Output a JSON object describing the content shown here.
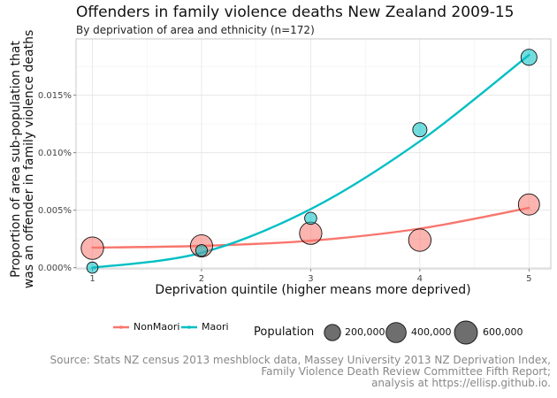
{
  "chart_data": {
    "type": "scatter",
    "title": "Offenders in family violence deaths New Zealand 2009-15",
    "subtitle": "By deprivation of area and ethnicity (n=172)",
    "xlabel": "Deprivation quintile (higher means more deprived)",
    "ylabel_lines": [
      "Proportion of area sub-population that",
      "was an offender in family violence deaths"
    ],
    "xlim": [
      0.85,
      5.2
    ],
    "ylim": [
      -0.0001,
      0.0199
    ],
    "x_ticks": [
      1,
      2,
      3,
      4,
      5
    ],
    "x_tick_labels": [
      "1",
      "2",
      "3",
      "4",
      "5"
    ],
    "y_ticks": [
      0,
      0.005,
      0.01,
      0.015
    ],
    "y_tick_labels": [
      "0.000%",
      "0.005%",
      "0.010%",
      "0.015%"
    ],
    "grid": true,
    "series": [
      {
        "name": "NonMaori",
        "color": "#F8766D",
        "points": [
          {
            "x": 1,
            "y": 0.0017,
            "population": 560000
          },
          {
            "x": 2,
            "y": 0.0019,
            "population": 540000
          },
          {
            "x": 3,
            "y": 0.003,
            "population": 550000
          },
          {
            "x": 4,
            "y": 0.0024,
            "population": 560000
          },
          {
            "x": 5,
            "y": 0.0055,
            "population": 470000
          }
        ],
        "trend": [
          {
            "x": 1,
            "y": 0.00175
          },
          {
            "x": 2,
            "y": 0.0019
          },
          {
            "x": 3,
            "y": 0.00235
          },
          {
            "x": 4,
            "y": 0.0034
          },
          {
            "x": 5,
            "y": 0.0052
          }
        ]
      },
      {
        "name": "Maori",
        "color": "#00BFC4",
        "points": [
          {
            "x": 1,
            "y": 1e-05,
            "population": 40000
          },
          {
            "x": 2,
            "y": 0.0015,
            "population": 50000
          },
          {
            "x": 3,
            "y": 0.0043,
            "population": 60000
          },
          {
            "x": 4,
            "y": 0.012,
            "population": 120000
          },
          {
            "x": 5,
            "y": 0.0183,
            "population": 190000
          }
        ],
        "trend": [
          {
            "x": 1,
            "y": 0.0
          },
          {
            "x": 2,
            "y": 0.0013
          },
          {
            "x": 3,
            "y": 0.0051
          },
          {
            "x": 4,
            "y": 0.011
          },
          {
            "x": 5,
            "y": 0.0185
          }
        ]
      }
    ],
    "legend": {
      "placement": "bottom",
      "title": "Population",
      "size_values": [
        200000,
        400000,
        600000
      ],
      "size_labels": [
        "200,000",
        "400,000",
        "600,000"
      ]
    },
    "caption_lines": [
      "Source: Stats NZ census 2013 meshblock data, Massey University 2013 NZ Deprivation Index,",
      "Family Violence Death Review Committee Fifth Report;",
      "analysis at https://ellisp.github.io."
    ]
  }
}
